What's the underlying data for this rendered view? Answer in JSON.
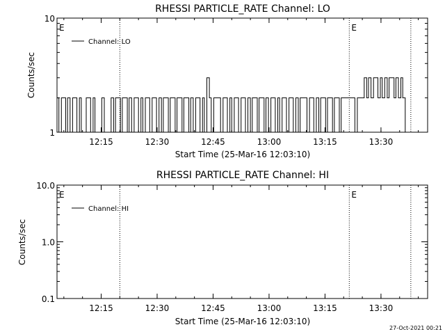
{
  "footer_timestamp": "27-Oct-2021 00:21",
  "chart_data": [
    {
      "type": "line",
      "title": "RHESSI PARTICLE_RATE Channel: LO",
      "xlabel": "Start Time (25-Mar-16 12:03:10)",
      "ylabel": "Counts/sec",
      "yscale": "log",
      "ylim": [
        1,
        10
      ],
      "yticks": [
        1,
        10
      ],
      "ytick_labels": [
        "1",
        "10"
      ],
      "xlim": [
        "12:03:10",
        "13:42:30"
      ],
      "xticks": [
        "12:15",
        "12:30",
        "12:45",
        "13:00",
        "13:15",
        "13:30"
      ],
      "event_lines": [
        "12:20:00",
        "13:21:30",
        "13:38:00"
      ],
      "event_markers": [
        {
          "label": "E",
          "x": "12:03:10"
        },
        {
          "label": "E",
          "x": "13:21:30"
        }
      ],
      "legend": {
        "position": "top-left",
        "entries": [
          "Channel: LO"
        ]
      },
      "series": [
        {
          "name": "Channel: LO",
          "x": [
            "12:03:10",
            "12:03:40",
            "12:04:20",
            "12:04:50",
            "12:05:30",
            "12:06:00",
            "12:06:40",
            "12:07:20",
            "12:08:00",
            "12:08:30",
            "12:09:10",
            "12:09:40",
            "12:10:20",
            "12:11:00",
            "12:11:30",
            "12:12:10",
            "12:12:50",
            "12:13:20",
            "12:14:00",
            "12:14:40",
            "12:15:10",
            "12:15:50",
            "12:16:30",
            "12:17:00",
            "12:17:40",
            "12:18:20",
            "12:18:50",
            "12:19:30",
            "12:20:10",
            "12:20:40",
            "12:21:20",
            "12:22:00",
            "12:22:30",
            "12:23:10",
            "12:23:50",
            "12:24:20",
            "12:25:00",
            "12:25:40",
            "12:26:10",
            "12:26:50",
            "12:27:30",
            "12:28:00",
            "12:28:40",
            "12:29:20",
            "12:29:50",
            "12:30:30",
            "12:31:10",
            "12:31:40",
            "12:32:20",
            "12:33:00",
            "12:33:30",
            "12:34:10",
            "12:34:50",
            "12:35:20",
            "12:36:00",
            "12:36:40",
            "12:37:10",
            "12:37:50",
            "12:38:30",
            "12:39:00",
            "12:39:40",
            "12:40:20",
            "12:40:50",
            "12:41:30",
            "12:42:10",
            "12:42:40",
            "12:43:20",
            "12:44:00",
            "12:44:30",
            "12:45:10",
            "12:45:50",
            "12:46:20",
            "12:47:00",
            "12:47:40",
            "12:48:10",
            "12:48:50",
            "12:49:30",
            "12:50:00",
            "12:50:40",
            "12:51:20",
            "12:51:50",
            "12:52:30",
            "12:53:10",
            "12:53:40",
            "12:54:20",
            "12:55:00",
            "12:55:30",
            "12:56:10",
            "12:56:50",
            "12:57:20",
            "12:58:00",
            "12:58:40",
            "12:59:10",
            "12:59:50",
            "13:00:30",
            "13:01:00",
            "13:01:40",
            "13:02:20",
            "13:02:50",
            "13:03:30",
            "13:04:10",
            "13:04:40",
            "13:05:20",
            "13:06:00",
            "13:06:30",
            "13:07:10",
            "13:07:50",
            "13:08:20",
            "13:09:00",
            "13:09:40",
            "13:10:10",
            "13:10:50",
            "13:11:30",
            "13:12:00",
            "13:12:40",
            "13:13:20",
            "13:13:50",
            "13:14:30",
            "13:15:10",
            "13:15:40",
            "13:16:20",
            "13:17:00",
            "13:17:30",
            "13:18:10",
            "13:18:50",
            "13:19:20",
            "13:20:00",
            "13:20:40",
            "13:21:10",
            "13:21:50",
            "13:22:30",
            "13:23:00",
            "13:23:40",
            "13:24:20",
            "13:24:50",
            "13:25:30",
            "13:26:10",
            "13:26:40",
            "13:27:20",
            "13:28:00",
            "13:28:30",
            "13:29:10",
            "13:29:50",
            "13:30:20",
            "13:31:00",
            "13:31:40",
            "13:32:10",
            "13:32:50",
            "13:33:30",
            "13:34:00",
            "13:34:40",
            "13:35:20",
            "13:35:50",
            "13:36:30"
          ],
          "values": [
            2,
            1,
            2,
            2,
            1,
            2,
            1,
            2,
            2,
            1,
            2,
            1,
            1,
            2,
            2,
            1,
            2,
            1,
            1,
            1,
            2,
            1,
            1,
            1,
            2,
            1,
            2,
            2,
            1,
            2,
            2,
            1,
            2,
            1,
            2,
            2,
            1,
            2,
            1,
            2,
            2,
            1,
            2,
            2,
            1,
            2,
            1,
            2,
            2,
            1,
            2,
            2,
            1,
            2,
            2,
            1,
            2,
            2,
            1,
            2,
            1,
            2,
            2,
            1,
            2,
            1,
            3,
            2,
            1,
            2,
            2,
            2,
            1,
            2,
            2,
            1,
            2,
            1,
            2,
            2,
            1,
            2,
            2,
            1,
            2,
            1,
            2,
            2,
            1,
            2,
            2,
            1,
            2,
            1,
            2,
            2,
            1,
            2,
            1,
            2,
            2,
            1,
            2,
            2,
            1,
            2,
            1,
            2,
            2,
            2,
            1,
            2,
            2,
            1,
            2,
            1,
            2,
            2,
            1,
            2,
            2,
            1,
            2,
            2,
            1,
            2,
            2,
            2,
            2,
            2,
            2,
            1,
            2,
            2,
            2,
            3,
            2,
            3,
            2,
            3,
            3,
            2,
            3,
            2,
            3,
            2,
            3,
            3,
            2,
            3,
            2,
            3,
            2,
            1
          ]
        }
      ]
    },
    {
      "type": "line",
      "title": "RHESSI PARTICLE_RATE Channel: HI",
      "xlabel": "Start Time (25-Mar-16 12:03:10)",
      "ylabel": "Counts/sec",
      "yscale": "log",
      "ylim": [
        0.1,
        10
      ],
      "yticks": [
        0.1,
        1,
        10
      ],
      "ytick_labels": [
        "0.1",
        "1.0",
        "10.0"
      ],
      "xlim": [
        "12:03:10",
        "13:42:30"
      ],
      "xticks": [
        "12:15",
        "12:30",
        "12:45",
        "13:00",
        "13:15",
        "13:30"
      ],
      "event_lines": [
        "12:20:00",
        "13:21:30",
        "13:38:00"
      ],
      "event_markers": [
        {
          "label": "E",
          "x": "12:03:10"
        },
        {
          "label": "E",
          "x": "13:21:30"
        }
      ],
      "legend": {
        "position": "top-left",
        "entries": [
          "Channel: HI"
        ]
      },
      "series": [
        {
          "name": "Channel: HI",
          "x": [],
          "values": []
        }
      ]
    }
  ]
}
